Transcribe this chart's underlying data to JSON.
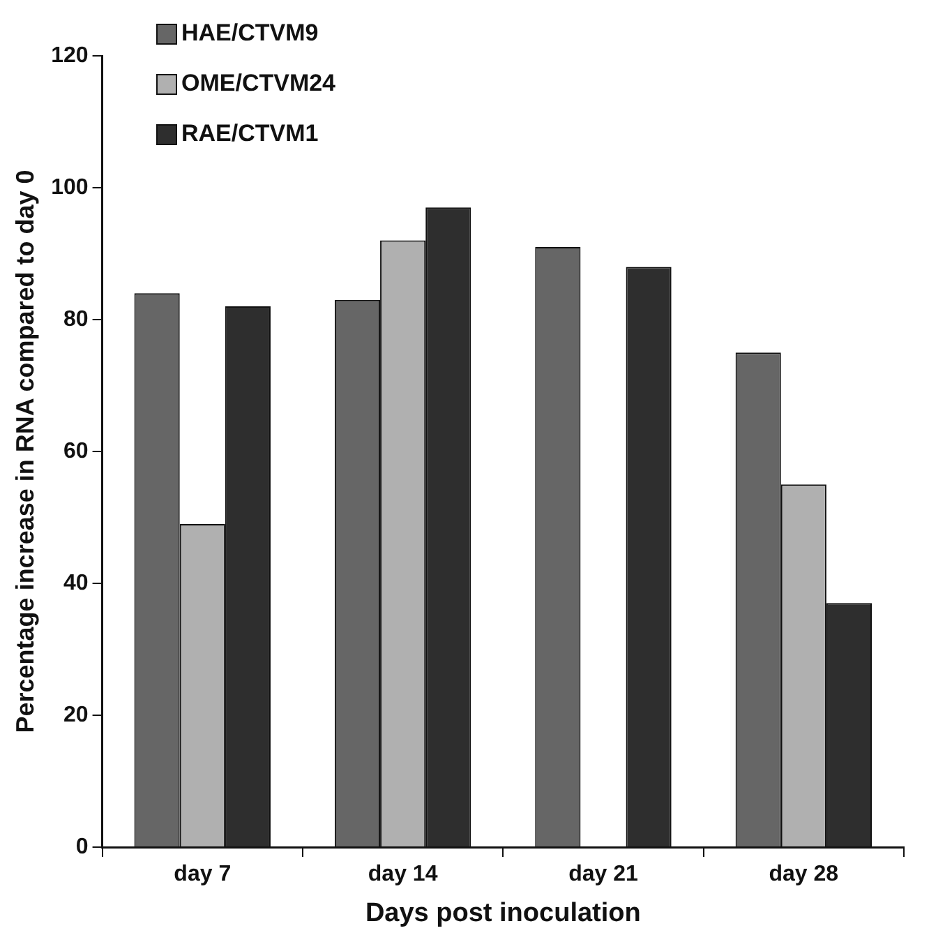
{
  "chart_data": {
    "type": "bar",
    "xlabel": "Days post inoculation",
    "ylabel": "Percentage increase in RNA compared to day 0",
    "categories": [
      "day 7",
      "day 14",
      "day 21",
      "day 28"
    ],
    "series": [
      {
        "name": "HAE/CTVM9",
        "color": "#666666",
        "values": [
          84,
          83,
          91,
          75
        ]
      },
      {
        "name": "OME/CTVM24",
        "color": "#b0b0b0",
        "values": [
          49,
          92,
          null,
          55
        ]
      },
      {
        "name": "RAE/CTVM1",
        "color": "#2e2e2e",
        "values": [
          82,
          97,
          88,
          37
        ]
      }
    ],
    "ylim": [
      0,
      120
    ],
    "yticks": [
      0,
      20,
      40,
      60,
      80,
      100,
      120
    ],
    "grid": false,
    "legend": "top left"
  }
}
